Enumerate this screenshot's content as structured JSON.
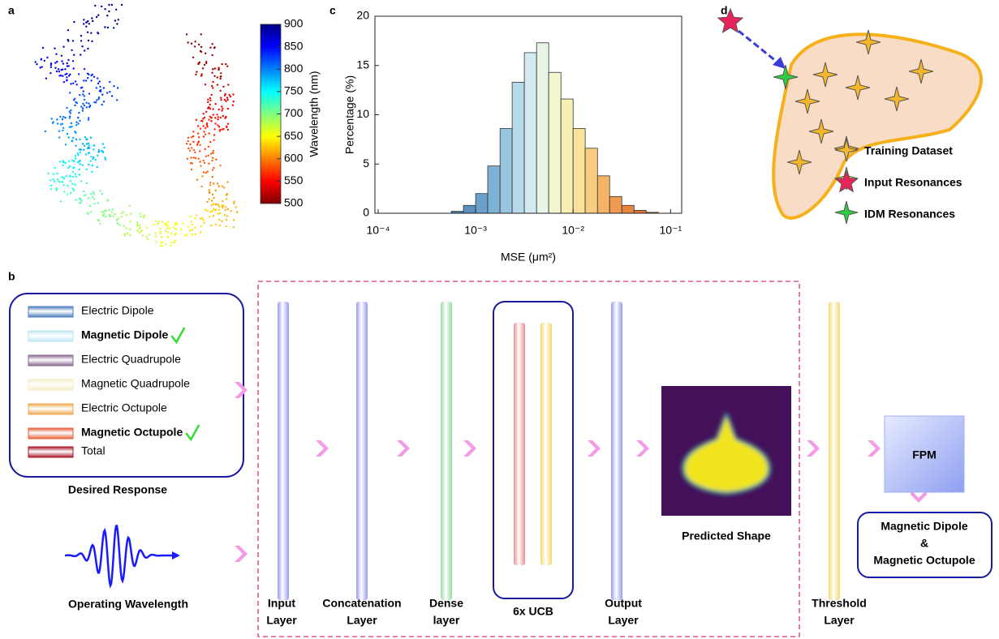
{
  "panel_labels": [
    "a",
    "b",
    "c",
    "d"
  ],
  "colorbar": {
    "title": "Wavelength (nm)",
    "lim": [
      500,
      900
    ],
    "ticks": [
      500,
      550,
      600,
      650,
      700,
      750,
      800,
      850,
      900
    ]
  },
  "chart_data": {
    "type": "histogram",
    "xlabel": "MSE (μm²)",
    "ylabel": "Percentage (%)",
    "xscale": "log",
    "bins": [
      0.000562,
      0.00075,
      0.001,
      0.00133,
      0.00178,
      0.00237,
      0.00316,
      0.00422,
      0.00562,
      0.0075,
      0.01,
      0.0133,
      0.0178,
      0.0237,
      0.0316,
      0.0422,
      0.0562,
      0.075
    ],
    "values": [
      0.2,
      0.8,
      2.0,
      4.8,
      8.6,
      13.3,
      16.3,
      17.3,
      14.3,
      11.6,
      8.6,
      6.6,
      3.8,
      1.7,
      0.8,
      0.3,
      0.1
    ],
    "colors": [
      "#4a7fb5",
      "#5a8fc0",
      "#6aa0ca",
      "#7db2d6",
      "#98c6e0",
      "#b6daea",
      "#d2ebf0",
      "#e8f5e6",
      "#f3f6cf",
      "#f8efb5",
      "#fbe29a",
      "#f9cd80",
      "#f5b366",
      "#ee9a52",
      "#e68442",
      "#df7338",
      "#d86630"
    ],
    "xlim": [
      0.0001,
      0.13
    ],
    "ylim": [
      0,
      20
    ],
    "xticks": [
      {
        "value": 0.0001,
        "label": "10⁻⁴"
      },
      {
        "value": 0.001,
        "label": "10⁻³"
      },
      {
        "value": 0.01,
        "label": "10⁻²"
      },
      {
        "value": 0.1,
        "label": "10⁻¹"
      }
    ],
    "yticks": [
      0,
      5,
      10,
      15,
      20
    ]
  },
  "legend_d": [
    "Training Dataset",
    "Input Resonances",
    "IDM Resonances"
  ],
  "network": {
    "desired_response": {
      "title": "Desired Response",
      "items": [
        {
          "name": "Electric Dipole",
          "color": "#4f7fc0",
          "selected": false
        },
        {
          "name": "Magnetic Dipole",
          "color": "#bfe6f3",
          "selected": true
        },
        {
          "name": "Electric Quadrupole",
          "color": "#8a6a92",
          "selected": false
        },
        {
          "name": "Magnetic Quadrupole",
          "color": "#f5edc6",
          "selected": false
        },
        {
          "name": "Electric Octupole",
          "color": "#f0a850",
          "selected": false
        },
        {
          "name": "Magnetic Octupole",
          "color": "#e8603c",
          "selected": true
        },
        {
          "name": "Total",
          "color": "#a8182a",
          "selected": false
        }
      ]
    },
    "operating_wavelength": "Operating Wavelength",
    "layers": [
      [
        "Input",
        "Layer"
      ],
      [
        "Concatenation",
        "Layer"
      ],
      [
        "Dense",
        "layer"
      ],
      [
        "6x UCB"
      ],
      [
        "Output",
        "Layer"
      ],
      [
        "Threshold",
        "Layer"
      ]
    ],
    "predicted_shape": "Predicted Shape",
    "fpm": "FPM",
    "result": [
      "Magnetic Dipole",
      "&",
      "Magnetic Octupole"
    ]
  }
}
